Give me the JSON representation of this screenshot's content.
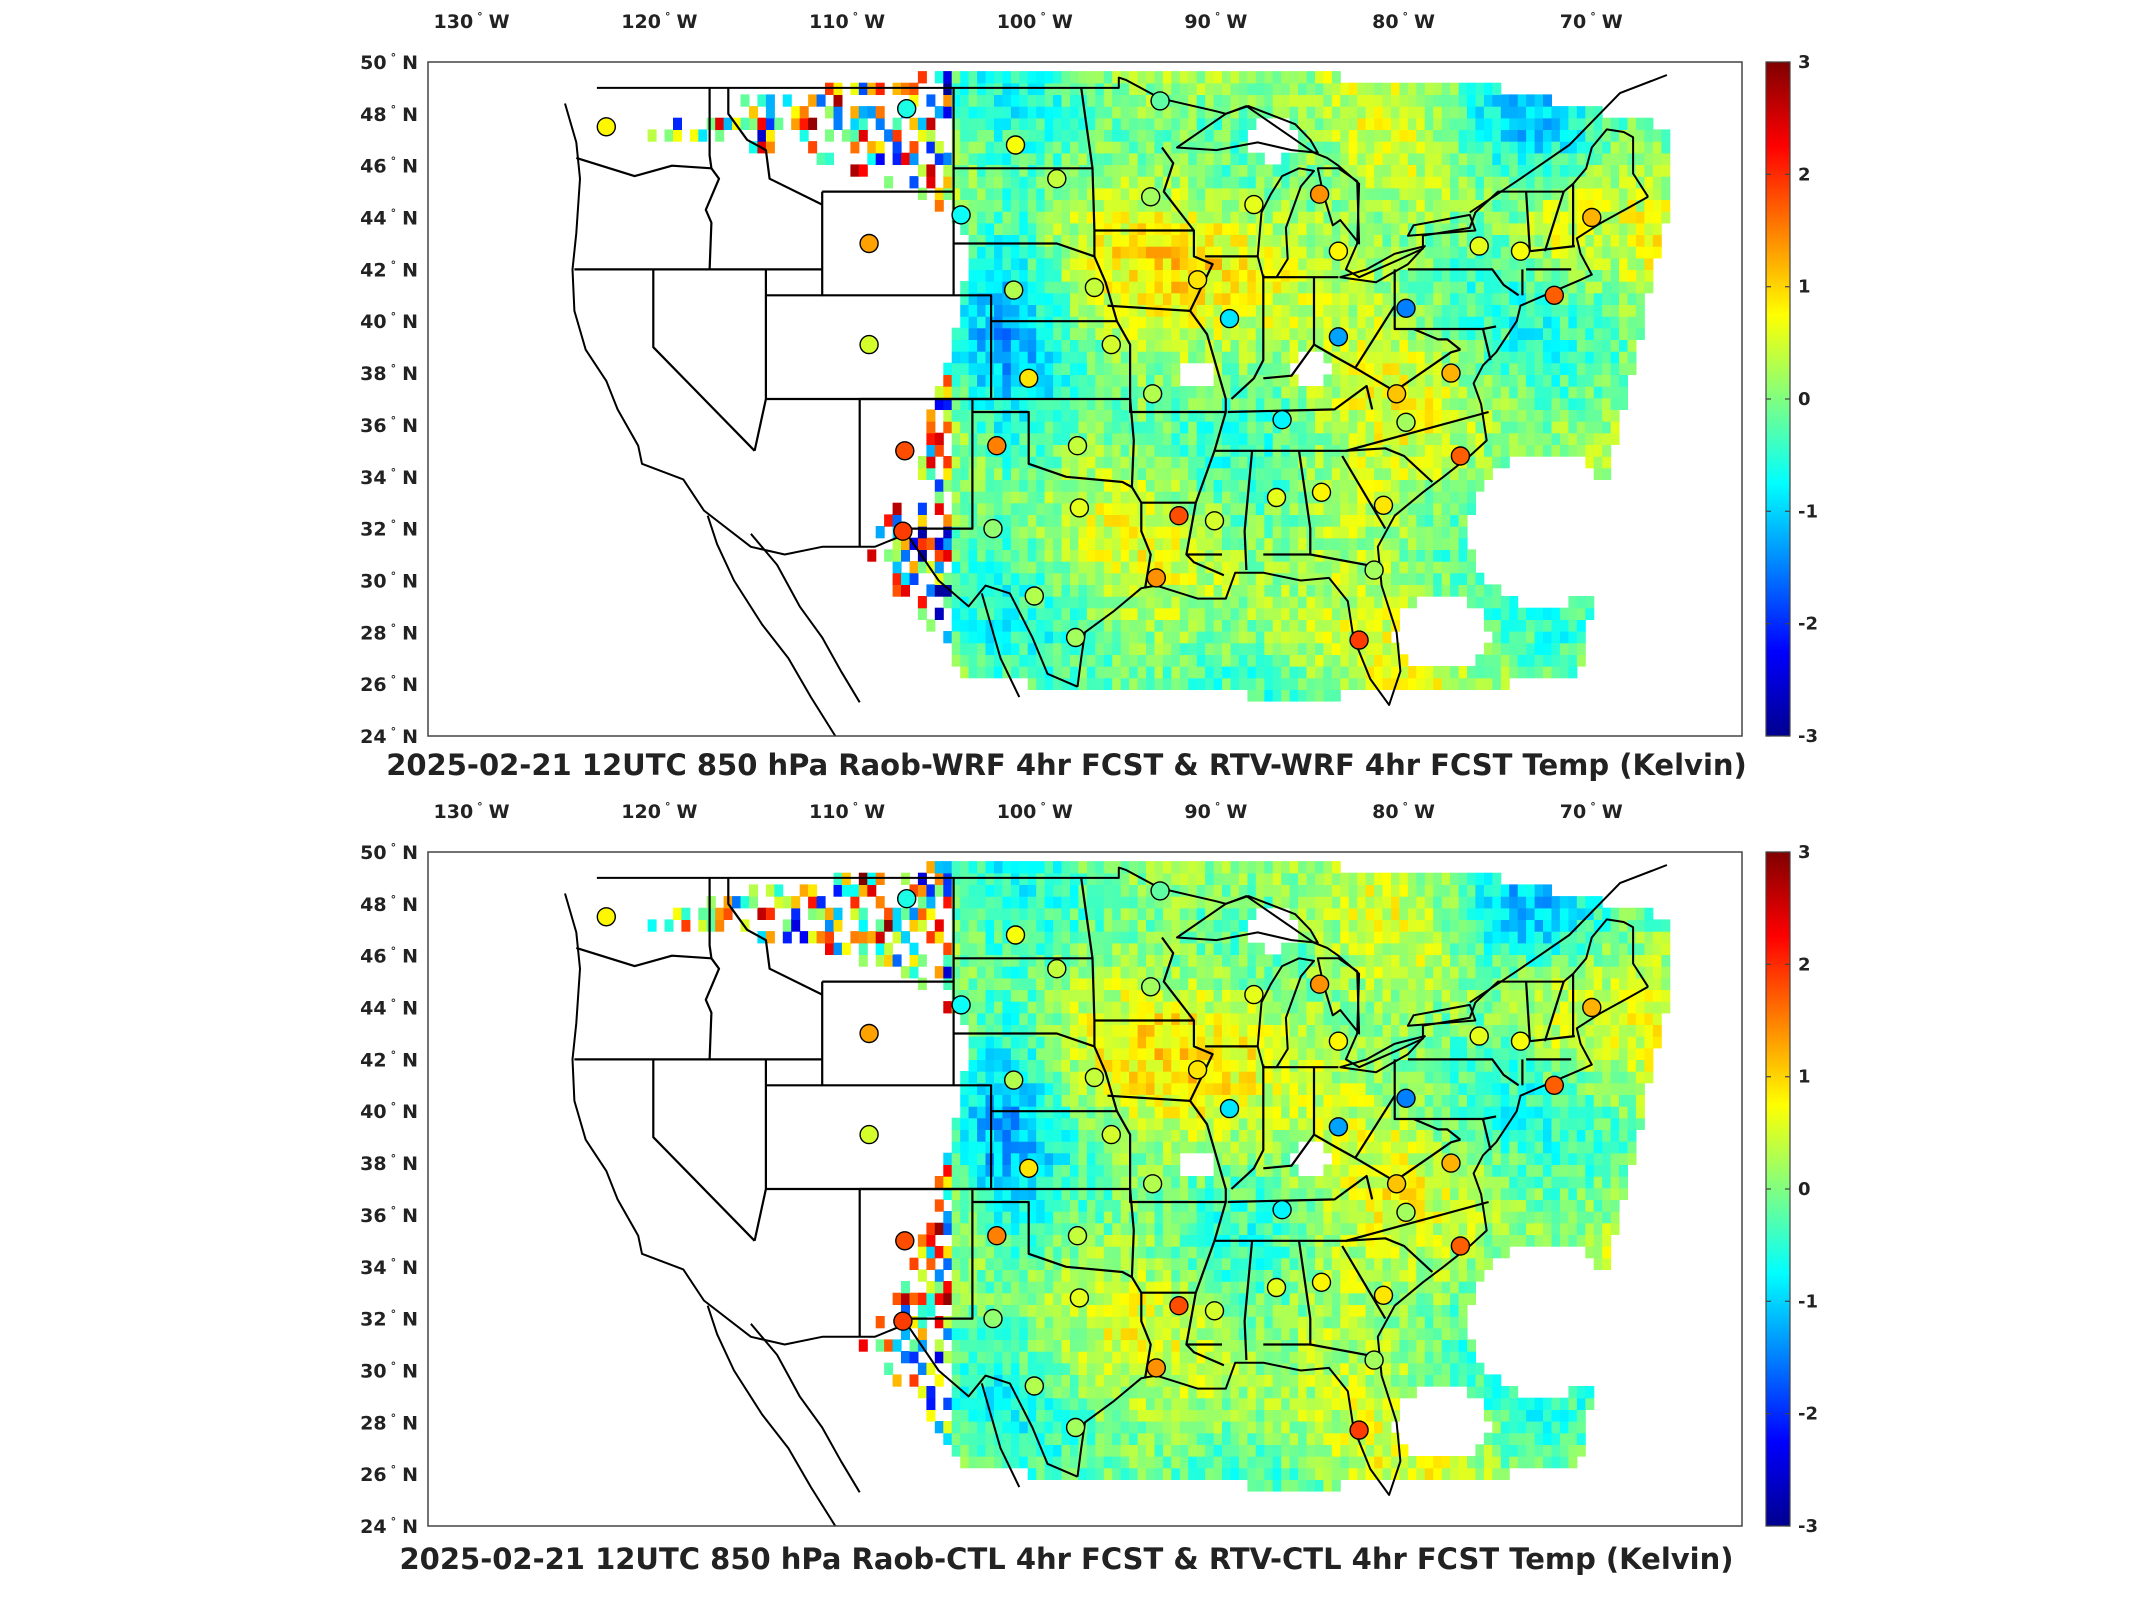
{
  "panels": [
    {
      "title": "2025-02-21 12UTC 850 hPa Raob-WRF 4hr FCST & RTV-WRF 4hr FCST Temp (Kelvin)"
    },
    {
      "title": "2025-02-21 12UTC 850 hPa Raob-CTL 4hr FCST & RTV-CTL 4hr FCST Temp (Kelvin)"
    }
  ],
  "map_axes": {
    "lon_ticks": [
      "130",
      "120",
      "110",
      "100",
      "90",
      "80",
      "70"
    ],
    "lon_suffix": "W",
    "lat_ticks": [
      "50",
      "48",
      "46",
      "44",
      "42",
      "40",
      "38",
      "36",
      "34",
      "32",
      "30",
      "28",
      "26",
      "24"
    ],
    "lat_suffix": "N",
    "degree_symbol": "°"
  },
  "colorbar": {
    "ticks": [
      "3",
      "2",
      "1",
      "0",
      "-1",
      "-2",
      "-3"
    ],
    "min": -3,
    "max": 3,
    "colormap": "jet",
    "colors": [
      "#00008f",
      "#0000ff",
      "#0080ff",
      "#00ffff",
      "#80ff80",
      "#ffff00",
      "#ff8000",
      "#ff0000",
      "#800000"
    ]
  },
  "chart_data": {
    "type": "map",
    "variable": "850 hPa Temp (Kelvin)",
    "lon_range": [
      -132,
      -62
    ],
    "lat_range": [
      24,
      50
    ],
    "raob_stations": [
      {
        "lon": -122.5,
        "lat": 47.5,
        "value": 0.8
      },
      {
        "lon": -106.5,
        "lat": 48.2,
        "value": -0.6
      },
      {
        "lon": -100.7,
        "lat": 46.8,
        "value": 0.7
      },
      {
        "lon": -98.5,
        "lat": 45.5,
        "value": 0.4
      },
      {
        "lon": -93.5,
        "lat": 44.8,
        "value": 0.2
      },
      {
        "lon": -93.0,
        "lat": 48.5,
        "value": -0.2
      },
      {
        "lon": -103.6,
        "lat": 44.1,
        "value": -0.7
      },
      {
        "lon": -108.5,
        "lat": 43.0,
        "value": 1.3
      },
      {
        "lon": -100.8,
        "lat": 41.2,
        "value": 0.3
      },
      {
        "lon": -96.5,
        "lat": 41.3,
        "value": 0.4
      },
      {
        "lon": -91.0,
        "lat": 41.6,
        "value": 0.9
      },
      {
        "lon": -88.0,
        "lat": 44.5,
        "value": 0.6
      },
      {
        "lon": -84.5,
        "lat": 44.9,
        "value": 1.4
      },
      {
        "lon": -83.5,
        "lat": 42.7,
        "value": 0.8
      },
      {
        "lon": -79.9,
        "lat": 40.5,
        "value": -1.5
      },
      {
        "lon": -89.3,
        "lat": 40.1,
        "value": -0.9
      },
      {
        "lon": -83.5,
        "lat": 39.4,
        "value": -1.3
      },
      {
        "lon": -108.5,
        "lat": 39.1,
        "value": 0.5
      },
      {
        "lon": -100.0,
        "lat": 37.8,
        "value": 0.9
      },
      {
        "lon": -95.6,
        "lat": 39.1,
        "value": 0.5
      },
      {
        "lon": -93.4,
        "lat": 37.2,
        "value": 0.3
      },
      {
        "lon": -86.5,
        "lat": 36.2,
        "value": -0.8
      },
      {
        "lon": -80.4,
        "lat": 37.2,
        "value": 1.1
      },
      {
        "lon": -79.9,
        "lat": 36.1,
        "value": 0.2
      },
      {
        "lon": -77.0,
        "lat": 34.8,
        "value": 1.7
      },
      {
        "lon": -106.6,
        "lat": 35.0,
        "value": 1.8
      },
      {
        "lon": -101.7,
        "lat": 35.2,
        "value": 1.5
      },
      {
        "lon": -97.4,
        "lat": 35.2,
        "value": 0.4
      },
      {
        "lon": -101.9,
        "lat": 32.0,
        "value": 0.1
      },
      {
        "lon": -97.3,
        "lat": 32.8,
        "value": 0.6
      },
      {
        "lon": -92.0,
        "lat": 32.5,
        "value": 1.8
      },
      {
        "lon": -90.1,
        "lat": 32.3,
        "value": 0.5
      },
      {
        "lon": -86.8,
        "lat": 33.2,
        "value": 0.6
      },
      {
        "lon": -84.4,
        "lat": 33.4,
        "value": 0.8
      },
      {
        "lon": -81.1,
        "lat": 32.9,
        "value": 0.9
      },
      {
        "lon": -106.7,
        "lat": 31.9,
        "value": 1.9
      },
      {
        "lon": -93.2,
        "lat": 30.1,
        "value": 1.4
      },
      {
        "lon": -81.6,
        "lat": 30.4,
        "value": 0.2
      },
      {
        "lon": -97.5,
        "lat": 27.8,
        "value": 0.2
      },
      {
        "lon": -82.4,
        "lat": 27.7,
        "value": 1.9
      },
      {
        "lon": -73.8,
        "lat": 42.7,
        "value": 0.7
      },
      {
        "lon": -76.0,
        "lat": 42.9,
        "value": 0.6
      },
      {
        "lon": -72.0,
        "lat": 41.0,
        "value": 1.7
      },
      {
        "lon": -70.0,
        "lat": 44.0,
        "value": 1.2
      },
      {
        "lon": -77.5,
        "lat": 38.0,
        "value": 1.2
      },
      {
        "lon": -99.7,
        "lat": 29.4,
        "value": 0.3
      }
    ]
  }
}
